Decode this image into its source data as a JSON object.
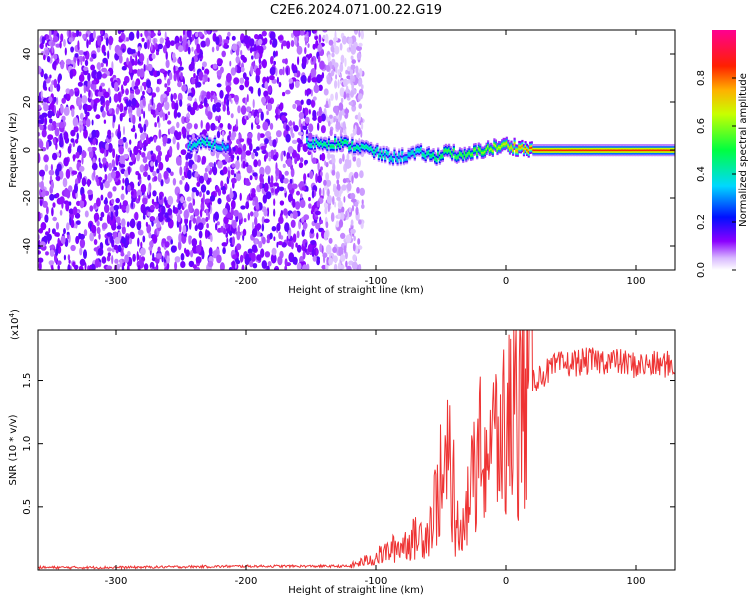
{
  "title": "C2E6.2024.071.00.22.G19",
  "chart_data": [
    {
      "type": "heatmap",
      "xlabel": "Height of straight line (km)",
      "ylabel": "Frequency (Hz)",
      "xlim": [
        -360,
        130
      ],
      "ylim": [
        -50,
        50
      ],
      "x_ticks": [
        -300,
        -200,
        -100,
        0,
        100
      ],
      "y_ticks": [
        -40,
        -20,
        0,
        20,
        40
      ],
      "colorbar": {
        "label": "Normalized spectral amplitude",
        "range": [
          0,
          1
        ],
        "ticks": [
          0.0,
          0.2,
          0.4,
          0.6,
          0.8
        ],
        "colormap": [
          "#ffffff",
          "#8b00ff",
          "#0000ff",
          "#00e0ff",
          "#00ff00",
          "#ffff00",
          "#ff8000",
          "#ff0000",
          "#ff00a0"
        ]
      },
      "ridge": {
        "description": "frequency trace vs height",
        "x": [
          -245,
          -230,
          -215,
          -150,
          -130,
          -110,
          -95,
          -85,
          -75,
          -65,
          -55,
          -45,
          -35,
          -20,
          -10,
          0,
          20,
          60,
          100,
          130
        ],
        "y": [
          2,
          3,
          1,
          3,
          3,
          1,
          -2,
          -3,
          -2,
          -1,
          -3,
          0,
          -3,
          0,
          1,
          2,
          0,
          0,
          0,
          0
        ],
        "amplitude": [
          0.4,
          0.45,
          0.35,
          0.45,
          0.5,
          0.45,
          0.45,
          0.4,
          0.4,
          0.45,
          0.5,
          0.55,
          0.55,
          0.6,
          0.65,
          0.7,
          0.85,
          0.85,
          0.85,
          0.85
        ]
      },
      "noise_region": [
        -360,
        -125
      ]
    },
    {
      "type": "line",
      "xlabel": "Height of straight line (km)",
      "ylabel": "SNR (10 * v/v)",
      "y_scale_label": "(x10",
      "y_scale_exp": "4",
      "y_scale_close": ")",
      "xlim": [
        -360,
        130
      ],
      "ylim": [
        0,
        1.9
      ],
      "x_ticks": [
        -300,
        -200,
        -100,
        0,
        100
      ],
      "y_ticks": [
        0.5,
        1.0,
        1.5
      ],
      "y_tick_labels": [
        "0.5",
        "1.0",
        "1.5"
      ],
      "series": [
        {
          "color": "#ee3333",
          "x": [
            -360,
            -300,
            -200,
            -120,
            -100,
            -80,
            -60,
            -50,
            -45,
            -40,
            -30,
            -20,
            -10,
            0,
            10,
            20,
            40,
            60,
            80,
            100,
            130
          ],
          "y": [
            0.02,
            0.02,
            0.03,
            0.03,
            0.1,
            0.2,
            0.3,
            0.7,
            0.6,
            0.3,
            0.5,
            0.9,
            1.0,
            1.1,
            1.3,
            1.5,
            1.62,
            1.65,
            1.66,
            1.62,
            1.63
          ]
        }
      ]
    }
  ]
}
